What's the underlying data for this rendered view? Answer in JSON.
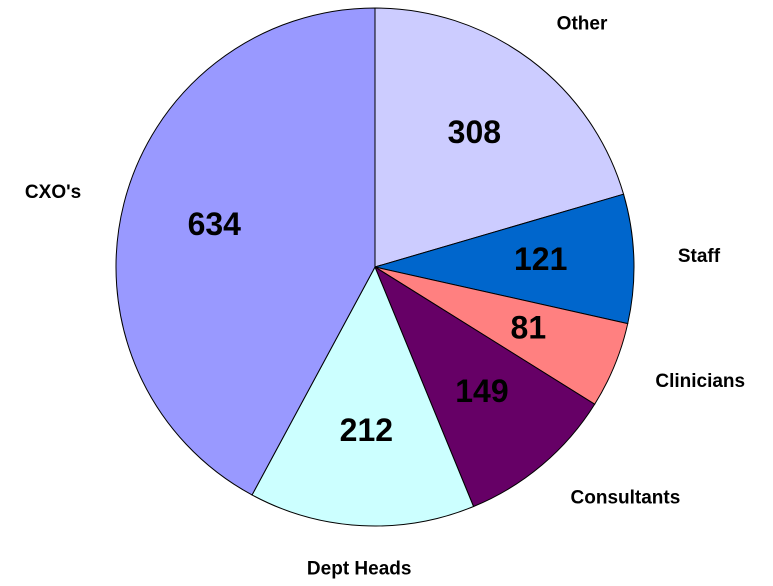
{
  "chart_data": {
    "type": "pie",
    "categories": [
      "Other",
      "Staff",
      "Clinicians",
      "Consultants",
      "Dept Heads",
      "CXO's"
    ],
    "values": [
      308,
      121,
      81,
      149,
      212,
      634
    ],
    "colors": [
      "#ccccff",
      "#0066cc",
      "#ff8080",
      "#660066",
      "#ccffff",
      "#9999ff"
    ]
  }
}
